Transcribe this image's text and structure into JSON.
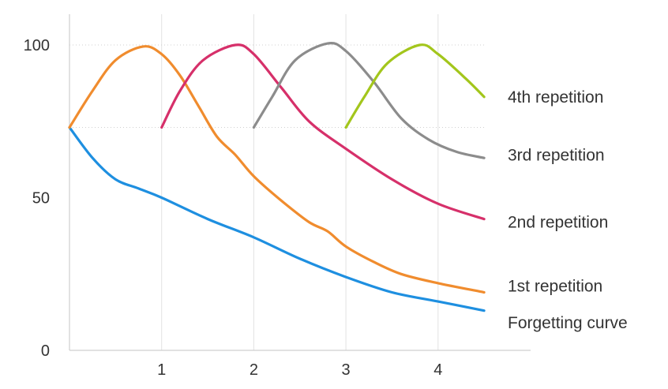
{
  "chart_data": {
    "type": "line",
    "title": "",
    "xlabel": "",
    "ylabel": "",
    "xlim": [
      0,
      4.5
    ],
    "ylim": [
      0,
      100
    ],
    "x_ticks": [
      1,
      2,
      3,
      4
    ],
    "y_ticks": [
      0,
      50,
      100
    ],
    "grid": "vertical at x ticks; dotted horizontal at y=73 and y=100",
    "legend": "right, labels at series ends",
    "series": [
      {
        "name": "Forgetting curve",
        "color": "#1e8fe0",
        "points": [
          [
            0,
            73
          ],
          [
            0.25,
            63
          ],
          [
            0.5,
            56
          ],
          [
            0.75,
            53
          ],
          [
            1,
            50
          ],
          [
            1.5,
            43
          ],
          [
            2,
            37
          ],
          [
            2.5,
            30
          ],
          [
            3,
            24
          ],
          [
            3.5,
            19
          ],
          [
            4,
            16
          ],
          [
            4.5,
            13
          ]
        ]
      },
      {
        "name": "1st repetition",
        "color": "#f08c2e",
        "points": [
          [
            0,
            73
          ],
          [
            0.25,
            85
          ],
          [
            0.5,
            95
          ],
          [
            0.8,
            99.5
          ],
          [
            1.0,
            97
          ],
          [
            1.2,
            90
          ],
          [
            1.4,
            80
          ],
          [
            1.6,
            70
          ],
          [
            1.8,
            64
          ],
          [
            2.0,
            57
          ],
          [
            2.3,
            49
          ],
          [
            2.6,
            42
          ],
          [
            2.8,
            39
          ],
          [
            3.0,
            34
          ],
          [
            3.3,
            29
          ],
          [
            3.6,
            25
          ],
          [
            4.0,
            22
          ],
          [
            4.5,
            19
          ]
        ]
      },
      {
        "name": "2nd repetition",
        "color": "#d6306a",
        "points": [
          [
            1,
            73
          ],
          [
            1.2,
            85
          ],
          [
            1.45,
            95
          ],
          [
            1.8,
            100
          ],
          [
            2.0,
            97
          ],
          [
            2.3,
            86
          ],
          [
            2.6,
            75
          ],
          [
            3.0,
            66
          ],
          [
            3.5,
            56
          ],
          [
            4.0,
            48
          ],
          [
            4.5,
            43
          ]
        ]
      },
      {
        "name": "3rd repetition",
        "color": "#8c8c8c",
        "points": [
          [
            2,
            73
          ],
          [
            2.2,
            83
          ],
          [
            2.45,
            95
          ],
          [
            2.8,
            100.5
          ],
          [
            3.0,
            98
          ],
          [
            3.3,
            88
          ],
          [
            3.6,
            76
          ],
          [
            3.9,
            69
          ],
          [
            4.2,
            65
          ],
          [
            4.5,
            63
          ]
        ]
      },
      {
        "name": "4th repetition",
        "color": "#a3c61c",
        "points": [
          [
            3,
            73
          ],
          [
            3.2,
            83
          ],
          [
            3.45,
            94
          ],
          [
            3.8,
            100
          ],
          [
            4.0,
            97
          ],
          [
            4.3,
            89
          ],
          [
            4.5,
            83
          ]
        ]
      }
    ],
    "legend_entries": [
      {
        "label": "4th repetition",
        "y": 83
      },
      {
        "label": "3rd repetition",
        "y": 64
      },
      {
        "label": "2nd repetition",
        "y": 42
      },
      {
        "label": "1st repetition",
        "y": 21
      },
      {
        "label": "Forgetting curve",
        "y": 9
      }
    ]
  }
}
